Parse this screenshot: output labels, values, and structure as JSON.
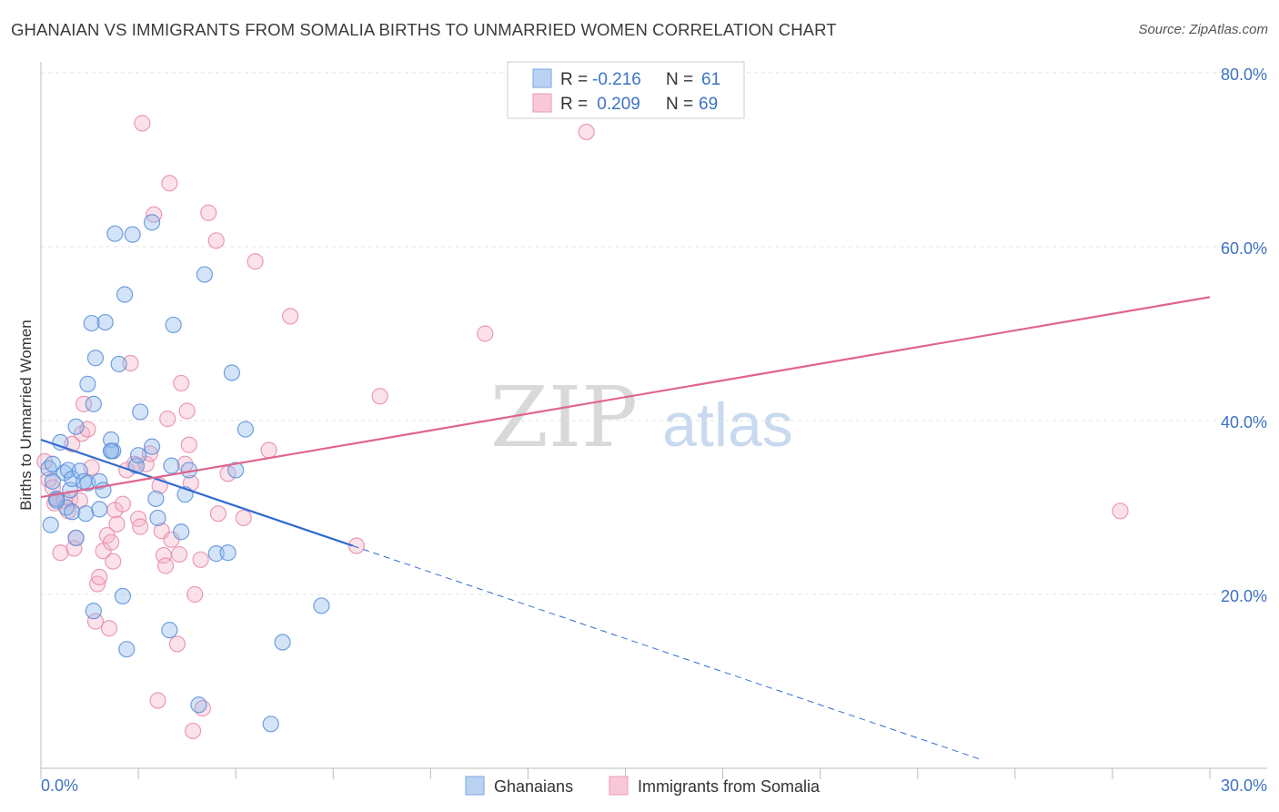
{
  "chart_data": {
    "type": "scatter",
    "title": "GHANAIAN VS IMMIGRANTS FROM SOMALIA BIRTHS TO UNMARRIED WOMEN CORRELATION CHART",
    "source": "Source: ZipAtlas.com",
    "xlabel": "",
    "ylabel": "Births to Unmarried Women",
    "xlim": [
      0,
      30
    ],
    "ylim": [
      0,
      80
    ],
    "x_tick_labels": [
      "0.0%",
      "30.0%"
    ],
    "y_ticks": [
      20,
      40,
      60,
      80
    ],
    "y_tick_labels": [
      "20.0%",
      "40.0%",
      "60.0%",
      "80.0%"
    ],
    "watermark": {
      "part1": "ZIP",
      "part2": "atlas"
    },
    "legend": {
      "rows": [
        {
          "r_label": "R = ",
          "r_value": "-0.216",
          "n_label": "N = ",
          "n_value": "61"
        },
        {
          "r_label": "R = ",
          "r_value": " 0.209",
          "n_label": "N = ",
          "n_value": "69"
        }
      ]
    },
    "series": [
      {
        "name": "Ghanaians",
        "color": "#8fb8ec",
        "stroke": "#5a8fd8",
        "line_color": "#2f6bd0",
        "trend": {
          "x0": 0,
          "y0": 37.8,
          "x1": 8,
          "y1": 25.6,
          "dash_to_x": 24.1
        },
        "points": [
          [
            0.2,
            34.5
          ],
          [
            0.3,
            33
          ],
          [
            0.25,
            28
          ],
          [
            0.4,
            31
          ],
          [
            0.5,
            37.5
          ],
          [
            0.6,
            34
          ],
          [
            0.65,
            30
          ],
          [
            0.7,
            34.3
          ],
          [
            0.75,
            32
          ],
          [
            0.8,
            29.5
          ],
          [
            0.8,
            33.3
          ],
          [
            0.9,
            39.3
          ],
          [
            1.0,
            34.2
          ],
          [
            0.9,
            26.5
          ],
          [
            1.1,
            33
          ],
          [
            1.2,
            32.8
          ],
          [
            1.15,
            29.3
          ],
          [
            1.2,
            44.2
          ],
          [
            1.3,
            51.2
          ],
          [
            1.35,
            41.9
          ],
          [
            1.35,
            18.1
          ],
          [
            1.4,
            47.2
          ],
          [
            1.5,
            33
          ],
          [
            1.5,
            29.8
          ],
          [
            1.6,
            32
          ],
          [
            1.65,
            51.3
          ],
          [
            1.8,
            37.8
          ],
          [
            1.8,
            36.5
          ],
          [
            1.85,
            36.5
          ],
          [
            1.9,
            61.5
          ],
          [
            2.0,
            46.5
          ],
          [
            2.1,
            19.8
          ],
          [
            2.15,
            54.5
          ],
          [
            2.2,
            13.7
          ],
          [
            2.35,
            61.4
          ],
          [
            2.45,
            34.8
          ],
          [
            2.5,
            36
          ],
          [
            2.55,
            41
          ],
          [
            2.85,
            62.8
          ],
          [
            2.85,
            37
          ],
          [
            2.95,
            31
          ],
          [
            3.0,
            28.8
          ],
          [
            3.3,
            15.9
          ],
          [
            3.4,
            51
          ],
          [
            3.35,
            34.8
          ],
          [
            3.6,
            27.2
          ],
          [
            3.7,
            31.5
          ],
          [
            3.8,
            34.3
          ],
          [
            4.05,
            7.3
          ],
          [
            4.2,
            56.8
          ],
          [
            4.5,
            24.7
          ],
          [
            4.8,
            24.8
          ],
          [
            4.9,
            45.5
          ],
          [
            5.0,
            34.3
          ],
          [
            5.25,
            39
          ],
          [
            6.2,
            14.5
          ],
          [
            7.2,
            18.7
          ],
          [
            5.9,
            5.1
          ],
          [
            0.3,
            35
          ],
          [
            0.4,
            30.8
          ],
          [
            1.8,
            36.5
          ]
        ]
      },
      {
        "name": "Immigrants from Somalia",
        "color": "#f5b3c8",
        "stroke": "#e889a8",
        "line_color": "#e0648e",
        "trend": {
          "x0": 0,
          "y0": 31.2,
          "x1": 30,
          "y1": 54.2
        },
        "points": [
          [
            0.1,
            35.3
          ],
          [
            0.2,
            33.2
          ],
          [
            0.3,
            32.3
          ],
          [
            0.35,
            30.5
          ],
          [
            0.4,
            31
          ],
          [
            0.5,
            24.8
          ],
          [
            0.6,
            30.8
          ],
          [
            0.7,
            29.6
          ],
          [
            0.75,
            31
          ],
          [
            0.8,
            37.3
          ],
          [
            0.85,
            25.3
          ],
          [
            0.9,
            26.5
          ],
          [
            1.0,
            30.8
          ],
          [
            1.05,
            38.5
          ],
          [
            1.1,
            41.9
          ],
          [
            1.2,
            39
          ],
          [
            1.3,
            34.6
          ],
          [
            1.4,
            16.9
          ],
          [
            1.45,
            21.2
          ],
          [
            1.5,
            22
          ],
          [
            1.6,
            25
          ],
          [
            1.7,
            26.8
          ],
          [
            1.75,
            16.1
          ],
          [
            1.8,
            26
          ],
          [
            1.85,
            23.8
          ],
          [
            1.9,
            29.7
          ],
          [
            1.95,
            28.1
          ],
          [
            2.1,
            30.4
          ],
          [
            2.2,
            34.3
          ],
          [
            2.3,
            46.6
          ],
          [
            2.4,
            35
          ],
          [
            2.5,
            28.7
          ],
          [
            2.55,
            27.8
          ],
          [
            2.6,
            74.2
          ],
          [
            2.7,
            35
          ],
          [
            2.8,
            36.2
          ],
          [
            2.9,
            63.7
          ],
          [
            3.0,
            7.8
          ],
          [
            3.1,
            27.3
          ],
          [
            3.15,
            24.5
          ],
          [
            3.2,
            23.3
          ],
          [
            3.25,
            40.2
          ],
          [
            3.3,
            67.3
          ],
          [
            3.35,
            26.3
          ],
          [
            3.5,
            14.3
          ],
          [
            3.55,
            24.6
          ],
          [
            3.6,
            44.3
          ],
          [
            3.7,
            35
          ],
          [
            3.75,
            41.1
          ],
          [
            3.8,
            37.2
          ],
          [
            3.9,
            4.3
          ],
          [
            3.95,
            20
          ],
          [
            4.1,
            24
          ],
          [
            4.15,
            6.9
          ],
          [
            4.3,
            63.9
          ],
          [
            4.5,
            60.7
          ],
          [
            4.55,
            29.3
          ],
          [
            4.8,
            33.9
          ],
          [
            5.2,
            28.8
          ],
          [
            5.5,
            58.3
          ],
          [
            5.85,
            36.6
          ],
          [
            6.4,
            52
          ],
          [
            8.1,
            25.6
          ],
          [
            8.7,
            42.8
          ],
          [
            11.4,
            50
          ],
          [
            14.0,
            73.2
          ],
          [
            27.7,
            29.6
          ],
          [
            3.05,
            32.5
          ],
          [
            3.85,
            32.8
          ]
        ]
      }
    ]
  }
}
